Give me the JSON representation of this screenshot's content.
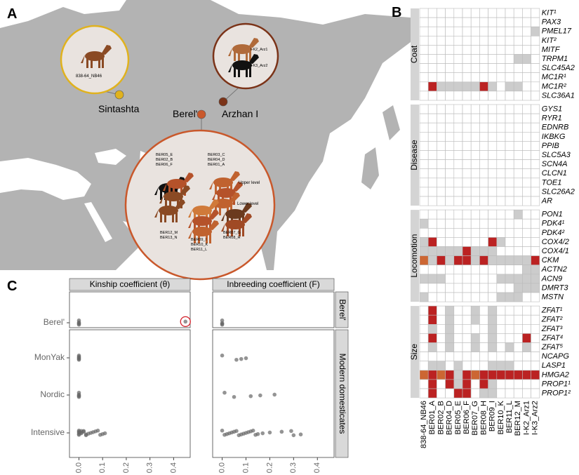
{
  "panel_labels": [
    "A",
    "B",
    "C"
  ],
  "map": {
    "sites": [
      {
        "name": "Sintashta",
        "color": "#e0b21e"
      },
      {
        "name": "Berel'",
        "color": "#c9582b"
      },
      {
        "name": "Arzhan I",
        "color": "#7b3318"
      }
    ],
    "sintashta_samples": [
      "838-64_NB46"
    ],
    "arzhan_samples": [
      "I-K2_Arz1",
      "I-K3_Arz2"
    ],
    "berel_upper_samples": [
      [
        "BER05_E",
        "BER02_B",
        "BER06_F"
      ],
      [
        "BER03_C",
        "BER04_D",
        "BER01_A"
      ]
    ],
    "berel_levels": [
      "Upper level",
      "Lower level"
    ],
    "berel_lower_samples": [
      [
        "BER12_M",
        "BER13_N"
      ],
      [
        "BER09_I",
        "BER10_K",
        "BER11_L"
      ],
      [
        "BER07_G",
        "BER08_H"
      ]
    ]
  },
  "heatmap": {
    "columns": [
      "838-64_NB46",
      "BER01_A",
      "BER02_B",
      "BER04_D",
      "BER05_E",
      "BER06_F",
      "BER07_G",
      "BER08_H",
      "BER09_I",
      "BER10_K",
      "BER11_L",
      "BER12_M",
      "I-K2_Arz1",
      "I-K3_Arz2"
    ],
    "groups": [
      {
        "name": "Coat",
        "genes": [
          "KIT¹",
          "PAX3",
          "PMEL17",
          "KIT²",
          "MITF",
          "TRPM1",
          "SLC45A2",
          "MC1R¹",
          "MC1R²",
          "SLC36A1"
        ],
        "cells": [
          [
            "#fff",
            "#fff",
            "#fff",
            "#fff",
            "#fff",
            "#fff",
            "#fff",
            "#fff",
            "#fff",
            "#fff",
            "#fff",
            "#fff",
            "#fff",
            "#fff"
          ],
          [
            "#fff",
            "#fff",
            "#fff",
            "#fff",
            "#fff",
            "#fff",
            "#fff",
            "#fff",
            "#fff",
            "#fff",
            "#fff",
            "#fff",
            "#fff",
            "#fff"
          ],
          [
            "#fff",
            "#fff",
            "#fff",
            "#fff",
            "#fff",
            "#fff",
            "#fff",
            "#fff",
            "#fff",
            "#fff",
            "#fff",
            "#fff",
            "#fff",
            "#ccc"
          ],
          [
            "#fff",
            "#fff",
            "#fff",
            "#fff",
            "#fff",
            "#fff",
            "#fff",
            "#fff",
            "#fff",
            "#fff",
            "#fff",
            "#fff",
            "#fff",
            "#fff"
          ],
          [
            "#fff",
            "#fff",
            "#fff",
            "#fff",
            "#fff",
            "#fff",
            "#fff",
            "#fff",
            "#fff",
            "#fff",
            "#fff",
            "#fff",
            "#fff",
            "#fff"
          ],
          [
            "#fff",
            "#fff",
            "#fff",
            "#fff",
            "#fff",
            "#fff",
            "#fff",
            "#fff",
            "#fff",
            "#fff",
            "#fff",
            "#ccc",
            "#ccc",
            "#fff"
          ],
          [
            "#fff",
            "#fff",
            "#fff",
            "#fff",
            "#fff",
            "#fff",
            "#fff",
            "#fff",
            "#fff",
            "#fff",
            "#fff",
            "#fff",
            "#fff",
            "#fff"
          ],
          [
            "#fff",
            "#fff",
            "#fff",
            "#fff",
            "#fff",
            "#fff",
            "#fff",
            "#fff",
            "#fff",
            "#fff",
            "#fff",
            "#fff",
            "#fff",
            "#fff"
          ],
          [
            "#fff",
            "#b22",
            "#ccc",
            "#ccc",
            "#ccc",
            "#ccc",
            "#ccc",
            "#b22",
            "#ccc",
            "#fff",
            "#ccc",
            "#ccc",
            "#fff",
            "#fff"
          ],
          [
            "#fff",
            "#fff",
            "#fff",
            "#fff",
            "#fff",
            "#fff",
            "#fff",
            "#fff",
            "#fff",
            "#fff",
            "#fff",
            "#fff",
            "#fff",
            "#fff"
          ]
        ]
      },
      {
        "name": "Disease",
        "genes": [
          "GYS1",
          "RYR1",
          "EDNRB",
          "IKBKG",
          "PPIB",
          "SLC5A3",
          "SCN4A",
          "CLCN1",
          "TOE1",
          "SLC26A2",
          "AR"
        ],
        "cells": [
          [
            "#fff",
            "#fff",
            "#fff",
            "#fff",
            "#fff",
            "#fff",
            "#fff",
            "#fff",
            "#fff",
            "#fff",
            "#fff",
            "#fff",
            "#fff",
            "#fff"
          ],
          [
            "#fff",
            "#fff",
            "#fff",
            "#fff",
            "#fff",
            "#fff",
            "#fff",
            "#fff",
            "#fff",
            "#fff",
            "#fff",
            "#fff",
            "#fff",
            "#fff"
          ],
          [
            "#fff",
            "#fff",
            "#fff",
            "#fff",
            "#fff",
            "#fff",
            "#fff",
            "#fff",
            "#fff",
            "#fff",
            "#fff",
            "#fff",
            "#fff",
            "#fff"
          ],
          [
            "#fff",
            "#fff",
            "#fff",
            "#fff",
            "#fff",
            "#fff",
            "#fff",
            "#fff",
            "#fff",
            "#fff",
            "#fff",
            "#fff",
            "#fff",
            "#fff"
          ],
          [
            "#fff",
            "#fff",
            "#fff",
            "#fff",
            "#fff",
            "#fff",
            "#fff",
            "#fff",
            "#fff",
            "#fff",
            "#fff",
            "#fff",
            "#fff",
            "#fff"
          ],
          [
            "#fff",
            "#fff",
            "#fff",
            "#fff",
            "#fff",
            "#fff",
            "#fff",
            "#fff",
            "#fff",
            "#fff",
            "#fff",
            "#fff",
            "#fff",
            "#fff"
          ],
          [
            "#fff",
            "#fff",
            "#fff",
            "#fff",
            "#fff",
            "#fff",
            "#fff",
            "#fff",
            "#fff",
            "#fff",
            "#fff",
            "#fff",
            "#fff",
            "#fff"
          ],
          [
            "#fff",
            "#fff",
            "#fff",
            "#fff",
            "#fff",
            "#fff",
            "#fff",
            "#fff",
            "#fff",
            "#fff",
            "#fff",
            "#fff",
            "#fff",
            "#fff"
          ],
          [
            "#fff",
            "#fff",
            "#fff",
            "#fff",
            "#fff",
            "#fff",
            "#fff",
            "#fff",
            "#fff",
            "#fff",
            "#fff",
            "#fff",
            "#fff",
            "#fff"
          ],
          [
            "#fff",
            "#fff",
            "#fff",
            "#fff",
            "#fff",
            "#fff",
            "#fff",
            "#fff",
            "#fff",
            "#fff",
            "#fff",
            "#fff",
            "#fff",
            "#fff"
          ],
          [
            "#fff",
            "#fff",
            "#fff",
            "#fff",
            "#fff",
            "#fff",
            "#fff",
            "#fff",
            "#fff",
            "#fff",
            "#fff",
            "#fff",
            "#fff",
            "#fff"
          ]
        ]
      },
      {
        "name": "Locomotion",
        "genes": [
          "PON1",
          "PDK4¹",
          "PDK4²",
          "COX4/2",
          "COX4/1",
          "CKM",
          "ACTN2",
          "ACN9",
          "DMRT3",
          "MSTN"
        ],
        "cells": [
          [
            "#fff",
            "#fff",
            "#fff",
            "#fff",
            "#fff",
            "#fff",
            "#fff",
            "#fff",
            "#fff",
            "#fff",
            "#fff",
            "#ccc",
            "#fff",
            "#fff"
          ],
          [
            "#ccc",
            "#fff",
            "#fff",
            "#fff",
            "#fff",
            "#fff",
            "#fff",
            "#fff",
            "#fff",
            "#fff",
            "#fff",
            "#fff",
            "#fff",
            "#fff"
          ],
          [
            "#fff",
            "#fff",
            "#fff",
            "#fff",
            "#fff",
            "#fff",
            "#fff",
            "#fff",
            "#fff",
            "#fff",
            "#fff",
            "#fff",
            "#fff",
            "#fff"
          ],
          [
            "#ccc",
            "#b22",
            "#fff",
            "#fff",
            "#fff",
            "#fff",
            "#fff",
            "#fff",
            "#b22",
            "#ccc",
            "#fff",
            "#fff",
            "#fff",
            "#fff"
          ],
          [
            "#ccc",
            "#ccc",
            "#ccc",
            "#ccc",
            "#ccc",
            "#b22",
            "#ccc",
            "#ccc",
            "#ccc",
            "#fff",
            "#fff",
            "#fff",
            "#fff",
            "#fff"
          ],
          [
            "#c63",
            "#ccc",
            "#b22",
            "#ccc",
            "#b22",
            "#b22",
            "#ccc",
            "#b22",
            "#ccc",
            "#ccc",
            "#ccc",
            "#ccc",
            "#ccc",
            "#b22"
          ],
          [
            "#fff",
            "#fff",
            "#fff",
            "#fff",
            "#fff",
            "#fff",
            "#fff",
            "#fff",
            "#fff",
            "#fff",
            "#fff",
            "#fff",
            "#ccc",
            "#ccc"
          ],
          [
            "#ccc",
            "#ccc",
            "#ccc",
            "#fff",
            "#fff",
            "#fff",
            "#fff",
            "#fff",
            "#fff",
            "#ccc",
            "#ccc",
            "#ccc",
            "#ccc",
            "#ccc"
          ],
          [
            "#fff",
            "#fff",
            "#fff",
            "#fff",
            "#fff",
            "#fff",
            "#fff",
            "#fff",
            "#fff",
            "#fff",
            "#fff",
            "#ccc",
            "#ccc",
            "#ccc"
          ],
          [
            "#ccc",
            "#fff",
            "#fff",
            "#fff",
            "#fff",
            "#fff",
            "#fff",
            "#fff",
            "#fff",
            "#ccc",
            "#ccc",
            "#ccc",
            "#fff",
            "#fff"
          ]
        ]
      },
      {
        "name": "Size",
        "genes": [
          "ZFAT¹",
          "ZFAT²",
          "ZFAT³",
          "ZFAT⁴",
          "ZFAT⁵",
          "NCAPG",
          "LASP1",
          "HMGA2",
          "PROP1¹",
          "PROP1²"
        ],
        "cells": [
          [
            "#fff",
            "#b22",
            "#fff",
            "#ccc",
            "#fff",
            "#fff",
            "#ccc",
            "#fff",
            "#ccc",
            "#fff",
            "#fff",
            "#fff",
            "#fff",
            "#fff"
          ],
          [
            "#fff",
            "#b22",
            "#fff",
            "#ccc",
            "#fff",
            "#fff",
            "#ccc",
            "#fff",
            "#ccc",
            "#fff",
            "#fff",
            "#fff",
            "#fff",
            "#fff"
          ],
          [
            "#fff",
            "#ccc",
            "#fff",
            "#ccc",
            "#fff",
            "#fff",
            "#fff",
            "#fff",
            "#ccc",
            "#fff",
            "#fff",
            "#fff",
            "#fff",
            "#fff"
          ],
          [
            "#fff",
            "#b22",
            "#fff",
            "#ccc",
            "#fff",
            "#fff",
            "#ccc",
            "#fff",
            "#ccc",
            "#fff",
            "#fff",
            "#fff",
            "#b22",
            "#fff"
          ],
          [
            "#fff",
            "#ccc",
            "#fff",
            "#ccc",
            "#fff",
            "#fff",
            "#ccc",
            "#fff",
            "#ccc",
            "#fff",
            "#ccc",
            "#fff",
            "#ccc",
            "#fff"
          ],
          [
            "#fff",
            "#fff",
            "#fff",
            "#fff",
            "#fff",
            "#fff",
            "#fff",
            "#fff",
            "#fff",
            "#fff",
            "#fff",
            "#fff",
            "#fff",
            "#fff"
          ],
          [
            "#fff",
            "#ccc",
            "#ccc",
            "#fff",
            "#ccc",
            "#fff",
            "#fff",
            "#fff",
            "#ccc",
            "#ccc",
            "#ccc",
            "#fff",
            "#fff",
            "#fff"
          ],
          [
            "#c63",
            "#b22",
            "#c63",
            "#b22",
            "#ccc",
            "#b22",
            "#c63",
            "#b22",
            "#b22",
            "#b22",
            "#b22",
            "#b22",
            "#b22",
            "#b22"
          ],
          [
            "#fff",
            "#b22",
            "#fff",
            "#b22",
            "#ccc",
            "#b22",
            "#fff",
            "#b22",
            "#ccc",
            "#fff",
            "#fff",
            "#fff",
            "#fff",
            "#fff"
          ],
          [
            "#fff",
            "#b22",
            "#fff",
            "#fff",
            "#b22",
            "#b22",
            "#fff",
            "#ccc",
            "#ccc",
            "#fff",
            "#fff",
            "#fff",
            "#fff",
            "#fff"
          ]
        ]
      }
    ]
  },
  "chart_data": {
    "type": "scatter",
    "facets": [
      "Kinship coefficient (θ)",
      "Inbreeding coefficient (F)"
    ],
    "strips": [
      "Berel'",
      "Modern domesticates"
    ],
    "categories": [
      "Berel'",
      "MonYak",
      "Nordic",
      "Intensive"
    ],
    "xlim": [
      -0.04,
      0.47
    ],
    "xticks": [
      {
        "value": 0,
        "label": "0.0"
      },
      {
        "value": 0.1,
        "label": "0.1"
      },
      {
        "value": 0.2,
        "label": "0.2"
      },
      {
        "value": 0.3,
        "label": "0.3"
      },
      {
        "value": 0.4,
        "label": "0.4"
      }
    ],
    "color": "#666666",
    "highlight_color": "#d4202a",
    "values": [
      [
        [
          0,
          0,
          0,
          0,
          0,
          0.45
        ],
        [
          0,
          0,
          0,
          0,
          0,
          0
        ],
        [
          0,
          0,
          0,
          0,
          0
        ],
        [
          0,
          0,
          0,
          0.01,
          0.01,
          0.02,
          0.02,
          0.03,
          0.03,
          0.04,
          0.05,
          0.06,
          0.07,
          0.08,
          0.09,
          0.1,
          0.11,
          0,
          0,
          0.01
        ]
      ],
      [
        [
          0,
          0,
          0,
          0
        ],
        [
          0,
          0.06,
          0.08,
          0.1
        ],
        [
          0.01,
          0.05,
          0.12,
          0.16,
          0.22
        ],
        [
          0,
          0.01,
          0.02,
          0.03,
          0.04,
          0.05,
          0.06,
          0.07,
          0.08,
          0.09,
          0.1,
          0.11,
          0.12,
          0.13,
          0.14,
          0.15,
          0.17,
          0.2,
          0.25,
          0.29,
          0.3,
          0.33
        ]
      ]
    ]
  }
}
